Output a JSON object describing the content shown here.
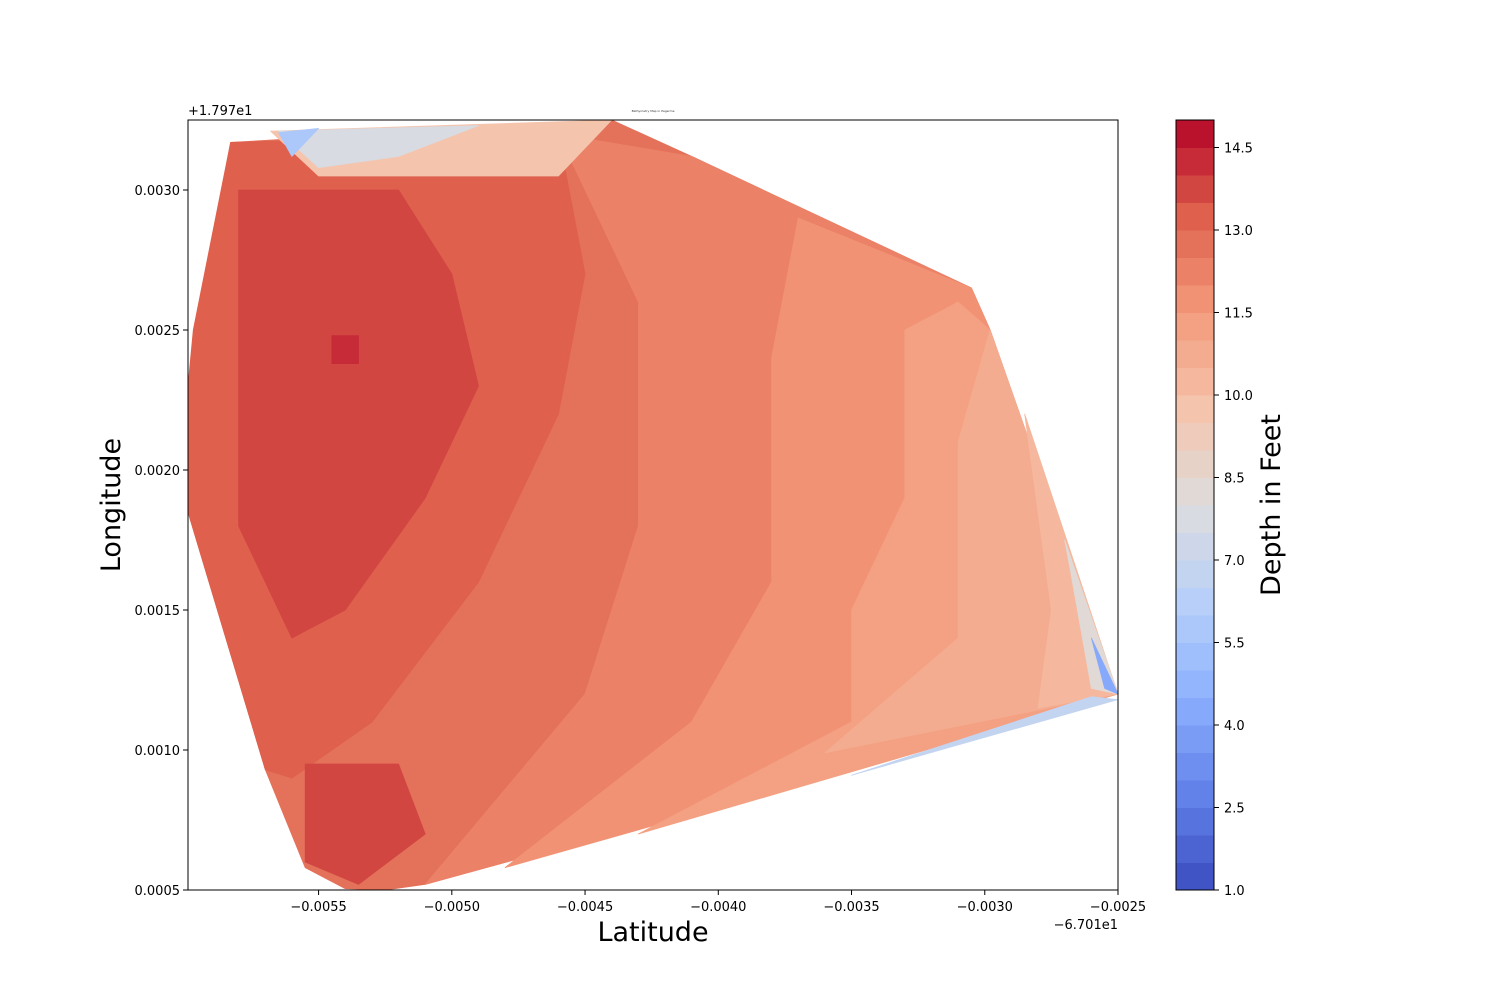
{
  "chart_data": {
    "type": "heatmap",
    "title": "Bathymetry Map in Pagerma",
    "xlabel": "Latitude",
    "ylabel": "Longitude",
    "x_offset_label": "−6.701e1",
    "y_offset_label": "+1.797e1",
    "xlim": [
      -0.00599,
      -0.0025
    ],
    "ylim": [
      0.0005,
      0.00325
    ],
    "x_ticks": [
      {
        "value": -0.0055,
        "label": "−0.0055"
      },
      {
        "value": -0.005,
        "label": "−0.0050"
      },
      {
        "value": -0.0045,
        "label": "−0.0045"
      },
      {
        "value": -0.004,
        "label": "−0.0040"
      },
      {
        "value": -0.0035,
        "label": "−0.0035"
      },
      {
        "value": -0.003,
        "label": "−0.0030"
      },
      {
        "value": -0.0025,
        "label": "−0.0025"
      }
    ],
    "y_ticks": [
      {
        "value": 0.0005,
        "label": "0.0005"
      },
      {
        "value": 0.001,
        "label": "0.0010"
      },
      {
        "value": 0.0015,
        "label": "0.0015"
      },
      {
        "value": 0.002,
        "label": "0.0020"
      },
      {
        "value": 0.0025,
        "label": "0.0025"
      },
      {
        "value": 0.003,
        "label": "0.0030"
      }
    ],
    "colorbar": {
      "label": "Depth in Feet",
      "colormap": "coolwarm",
      "min": 1.0,
      "max": 15.0,
      "levels": [
        1.0,
        1.5,
        2.0,
        2.5,
        3.0,
        3.5,
        4.0,
        4.5,
        5.0,
        5.5,
        6.0,
        6.5,
        7.0,
        7.5,
        8.0,
        8.5,
        9.0,
        9.5,
        10.0,
        10.5,
        11.0,
        11.5,
        12.0,
        12.5,
        13.0,
        13.5,
        14.0,
        14.5,
        15.0
      ],
      "ticks": [
        {
          "value": 1.0,
          "label": "1.0"
        },
        {
          "value": 2.5,
          "label": "2.5"
        },
        {
          "value": 4.0,
          "label": "4.0"
        },
        {
          "value": 5.5,
          "label": "5.5"
        },
        {
          "value": 7.0,
          "label": "7.0"
        },
        {
          "value": 8.5,
          "label": "8.5"
        },
        {
          "value": 10.0,
          "label": "10.0"
        },
        {
          "value": 11.5,
          "label": "11.5"
        },
        {
          "value": 13.0,
          "label": "13.0"
        },
        {
          "value": 14.5,
          "label": "14.5"
        }
      ]
    },
    "survey_boundary": [
      [
        -0.00583,
        0.00317
      ],
      [
        -0.0058,
        0.0032
      ],
      [
        -0.0056,
        0.003205
      ],
      [
        -0.0044,
        0.00325
      ],
      [
        -0.0041,
        0.00312
      ],
      [
        -0.00305,
        0.00265
      ],
      [
        -0.00298,
        0.0025
      ],
      [
        -0.0027,
        0.00175
      ],
      [
        -0.0025,
        0.0012
      ],
      [
        -0.0025,
        0.00118
      ],
      [
        -0.0051,
        0.00052
      ],
      [
        -0.00525,
        0.0005
      ],
      [
        -0.0054,
        0.000505
      ],
      [
        -0.00555,
        0.00058
      ],
      [
        -0.00564,
        0.00075
      ],
      [
        -0.0057,
        0.00093
      ],
      [
        -0.00599,
        0.00185
      ],
      [
        -0.00599,
        0.0023
      ],
      [
        -0.00597,
        0.0025
      ]
    ],
    "depth_regions": [
      {
        "level": 12.5,
        "polygon": [
          [
            -0.00583,
            0.00317
          ],
          [
            -0.0044,
            0.00325
          ],
          [
            -0.0041,
            0.00312
          ],
          [
            -0.00305,
            0.00265
          ],
          [
            -0.00298,
            0.0025
          ],
          [
            -0.0025,
            0.0012
          ],
          [
            -0.0051,
            0.00052
          ],
          [
            -0.00525,
            0.0005
          ],
          [
            -0.0054,
            0.000505
          ],
          [
            -0.00555,
            0.00058
          ],
          [
            -0.0057,
            0.00093
          ],
          [
            -0.00599,
            0.00185
          ],
          [
            -0.00599,
            0.0023
          ]
        ]
      },
      {
        "level": 12.0,
        "polygon": [
          [
            -0.0046,
            0.0032
          ],
          [
            -0.0041,
            0.00312
          ],
          [
            -0.00305,
            0.00265
          ],
          [
            -0.00298,
            0.0025
          ],
          [
            -0.0025,
            0.0012
          ],
          [
            -0.0051,
            0.00052
          ],
          [
            -0.0045,
            0.0012
          ],
          [
            -0.0043,
            0.0018
          ],
          [
            -0.0043,
            0.0026
          ]
        ]
      },
      {
        "level": 11.5,
        "polygon": [
          [
            -0.0037,
            0.0029
          ],
          [
            -0.00305,
            0.00265
          ],
          [
            -0.00298,
            0.0025
          ],
          [
            -0.0025,
            0.0012
          ],
          [
            -0.0048,
            0.00058
          ],
          [
            -0.0041,
            0.0011
          ],
          [
            -0.0038,
            0.0016
          ],
          [
            -0.0038,
            0.0024
          ]
        ]
      },
      {
        "level": 11.0,
        "polygon": [
          [
            -0.0031,
            0.0026
          ],
          [
            -0.00298,
            0.0025
          ],
          [
            -0.0025,
            0.0012
          ],
          [
            -0.0043,
            0.0007
          ],
          [
            -0.0035,
            0.0011
          ],
          [
            -0.0035,
            0.0015
          ],
          [
            -0.0033,
            0.0019
          ],
          [
            -0.0033,
            0.0025
          ]
        ]
      },
      {
        "level": 10.5,
        "polygon": [
          [
            -0.00298,
            0.0025
          ],
          [
            -0.0025,
            0.0012
          ],
          [
            -0.0036,
            0.00099
          ],
          [
            -0.0031,
            0.0014
          ],
          [
            -0.0031,
            0.0021
          ]
        ]
      },
      {
        "level": 10.0,
        "polygon": [
          [
            -0.00285,
            0.0022
          ],
          [
            -0.0025,
            0.0012
          ],
          [
            -0.0028,
            0.00115
          ],
          [
            -0.00275,
            0.0015
          ]
        ]
      },
      {
        "level": 13.0,
        "polygon": [
          [
            -0.00583,
            0.00317
          ],
          [
            -0.0046,
            0.0032
          ],
          [
            -0.0045,
            0.0027
          ],
          [
            -0.0046,
            0.0022
          ],
          [
            -0.0049,
            0.0016
          ],
          [
            -0.0053,
            0.0011
          ],
          [
            -0.0056,
            0.0009
          ],
          [
            -0.0057,
            0.00093
          ],
          [
            -0.00599,
            0.00185
          ],
          [
            -0.00599,
            0.0023
          ],
          [
            -0.00597,
            0.0025
          ]
        ]
      },
      {
        "level": 13.5,
        "polygon": [
          [
            -0.0058,
            0.003
          ],
          [
            -0.0052,
            0.003
          ],
          [
            -0.005,
            0.0027
          ],
          [
            -0.0049,
            0.0023
          ],
          [
            -0.0051,
            0.0019
          ],
          [
            -0.0054,
            0.0015
          ],
          [
            -0.0056,
            0.0014
          ],
          [
            -0.0058,
            0.0018
          ],
          [
            -0.0058,
            0.0024
          ]
        ]
      },
      {
        "level": 13.5,
        "polygon": [
          [
            -0.00555,
            0.00095
          ],
          [
            -0.0052,
            0.00095
          ],
          [
            -0.0051,
            0.0007
          ],
          [
            -0.00535,
            0.00052
          ],
          [
            -0.00555,
            0.0006
          ]
        ]
      },
      {
        "level": 14.0,
        "polygon": [
          [
            -0.00545,
            0.00248
          ],
          [
            -0.00535,
            0.00248
          ],
          [
            -0.00535,
            0.00238
          ],
          [
            -0.00545,
            0.00238
          ]
        ]
      },
      {
        "level": 9.5,
        "polygon": [
          [
            -0.00568,
            0.00321
          ],
          [
            -0.0044,
            0.00325
          ],
          [
            -0.0046,
            0.00305
          ],
          [
            -0.0055,
            0.00305
          ]
        ]
      },
      {
        "level": 7.5,
        "polygon": [
          [
            -0.00565,
            0.00321
          ],
          [
            -0.0049,
            0.00323
          ],
          [
            -0.0052,
            0.00312
          ],
          [
            -0.0055,
            0.00308
          ]
        ]
      },
      {
        "level": 5.5,
        "polygon": [
          [
            -0.00565,
            0.003205
          ],
          [
            -0.0055,
            0.00322
          ],
          [
            -0.0056,
            0.00312
          ]
        ]
      },
      {
        "level": 8.0,
        "polygon": [
          [
            -0.0027,
            0.00175
          ],
          [
            -0.0025,
            0.0012
          ],
          [
            -0.0026,
            0.00122
          ],
          [
            -0.00268,
            0.00165
          ]
        ]
      },
      {
        "level": 4.0,
        "polygon": [
          [
            -0.0026,
            0.0014
          ],
          [
            -0.0025,
            0.0012
          ],
          [
            -0.00255,
            0.00122
          ]
        ]
      },
      {
        "level": 6.5,
        "polygon": [
          [
            -0.0025,
            0.00118
          ],
          [
            -0.0035,
            0.00091
          ],
          [
            -0.0026,
            0.00119
          ]
        ]
      }
    ]
  }
}
